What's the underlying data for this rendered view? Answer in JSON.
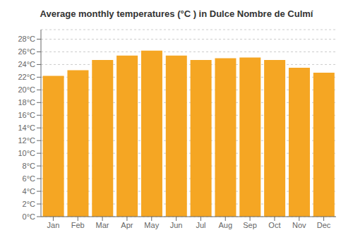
{
  "chart_data": {
    "type": "bar",
    "title": "Average monthly temperatures (°C ) in Dulce Nombre de Culmí",
    "categories": [
      "Jan",
      "Feb",
      "Mar",
      "Apr",
      "May",
      "Jun",
      "Jul",
      "Aug",
      "Sep",
      "Oct",
      "Nov",
      "Dec"
    ],
    "values": [
      22.2,
      23.1,
      24.7,
      25.4,
      26.2,
      25.4,
      24.7,
      25.0,
      25.1,
      24.7,
      23.5,
      22.7
    ],
    "color": "#F5A623",
    "ylim": [
      0,
      29.5
    ],
    "yticks": [
      {
        "value": 0,
        "label": "0°C"
      },
      {
        "value": 2,
        "label": "2°C"
      },
      {
        "value": 4,
        "label": "4°C"
      },
      {
        "value": 6,
        "label": "6°C"
      },
      {
        "value": 8,
        "label": "8°C"
      },
      {
        "value": 10,
        "label": "10°C"
      },
      {
        "value": 12,
        "label": "12°C"
      },
      {
        "value": 14,
        "label": "14°C"
      },
      {
        "value": 16,
        "label": "16°C"
      },
      {
        "value": 18,
        "label": "18°C"
      },
      {
        "value": 20,
        "label": "20°C"
      },
      {
        "value": 22,
        "label": "22°C"
      },
      {
        "value": 24,
        "label": "24°C"
      },
      {
        "value": 26,
        "label": "26°C"
      },
      {
        "value": 28,
        "label": "28°C"
      }
    ],
    "grid": true
  }
}
